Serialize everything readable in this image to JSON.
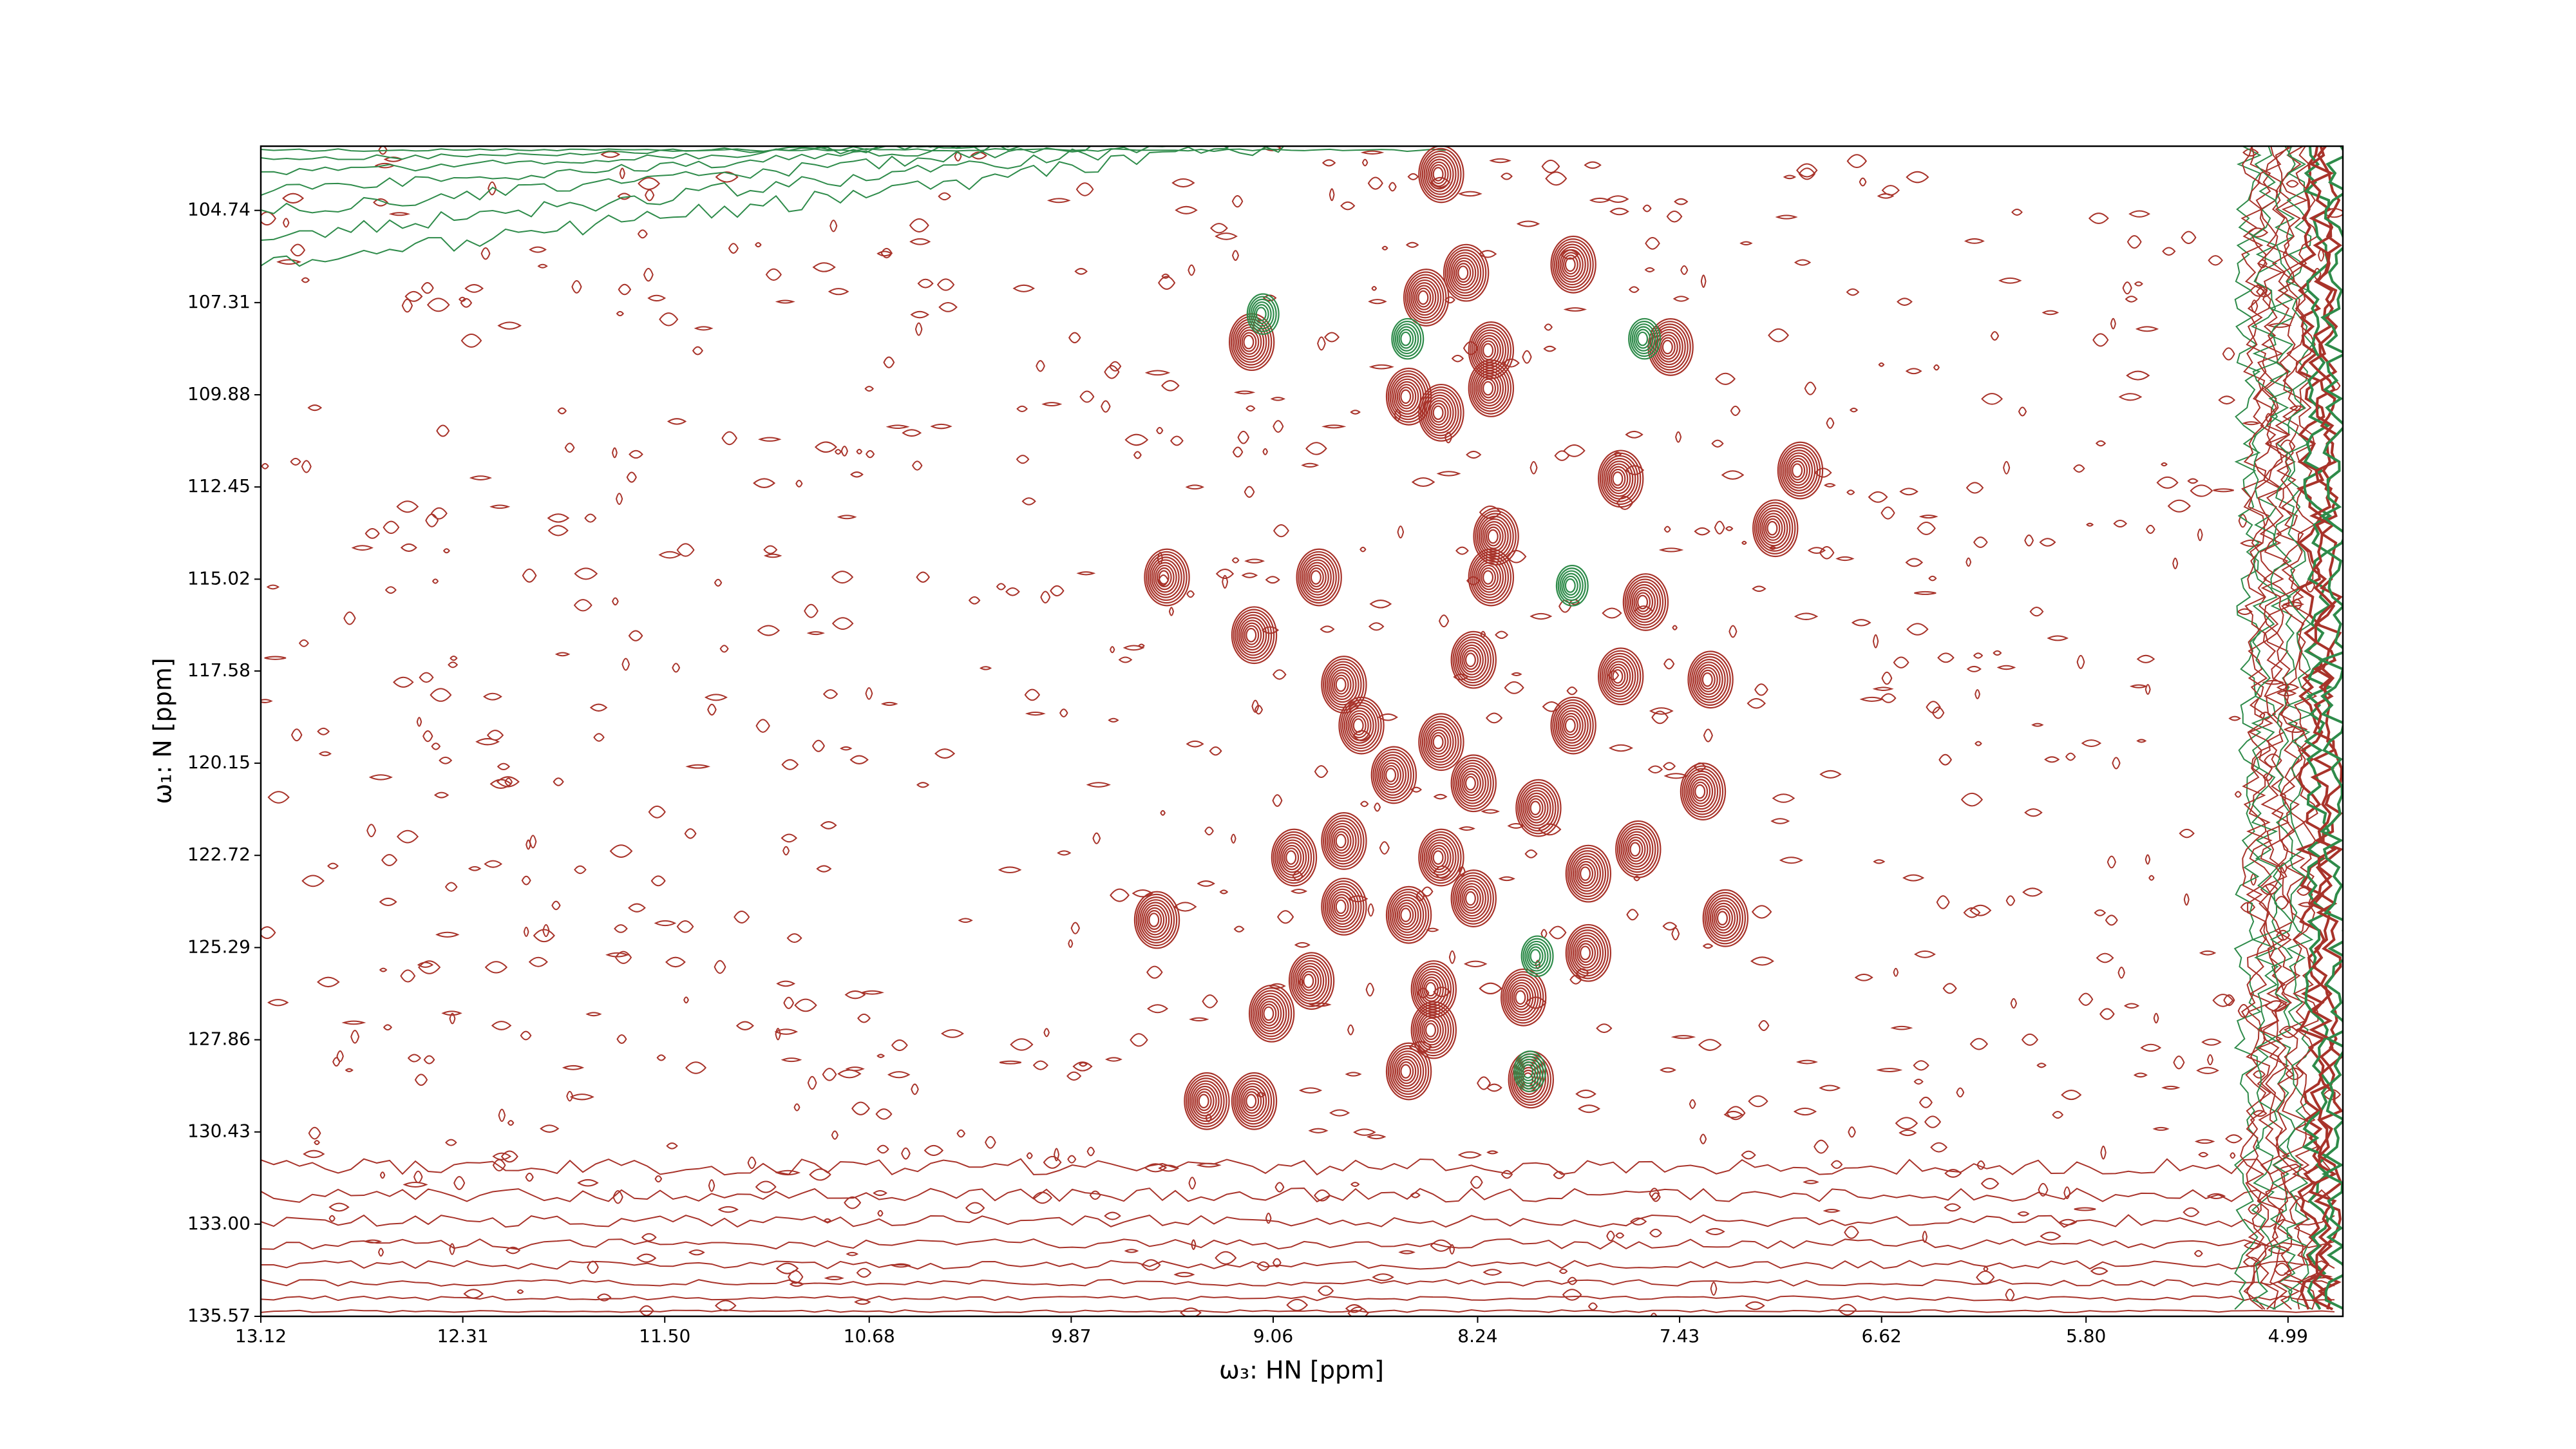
{
  "chart_data": {
    "type": "contour",
    "x_label": "ω₃: HN [ppm]",
    "y_label": "ω₁: N [ppm]",
    "xlim": [
      13.12,
      4.77
    ],
    "ylim": [
      135.57,
      102.95
    ],
    "xticks": [
      13.12,
      12.31,
      {
        "value": 11.5,
        "label": "11.50"
      },
      10.68,
      9.87,
      9.06,
      8.24,
      7.43,
      6.62,
      {
        "value": 5.8,
        "label": "5.80"
      },
      4.99
    ],
    "yticks": [
      104.74,
      107.31,
      109.88,
      112.45,
      115.02,
      117.58,
      120.15,
      122.72,
      125.29,
      127.86,
      130.43,
      {
        "value": 133,
        "label": "133.00"
      },
      135.57
    ],
    "series": [
      {
        "color": "#a8332a",
        "x": [
          9.16,
          8.2,
          7.48,
          8.53,
          8.4,
          8.2,
          7.68,
          6.96,
          7.06,
          8.18,
          9.5,
          8.89,
          9.15,
          8.2,
          7.58,
          7.32,
          8.79,
          8.72,
          7.35,
          7.68,
          7.87,
          8.4,
          8.27,
          8.59,
          8.79,
          8.99,
          7.61,
          7.81,
          7.26,
          9.54,
          8.79,
          8.53,
          7.81,
          8.92,
          9.08,
          8.43,
          8.07,
          8.43,
          8.53,
          8.04,
          9.15,
          9.34,
          8.27,
          8.4,
          8.27,
          8.01,
          8.46,
          8.3,
          7.87,
          8.4
        ],
        "y": [
          108.41,
          108.64,
          108.55,
          109.93,
          110.38,
          109.7,
          112.22,
          111.99,
          113.6,
          113.83,
          114.97,
          114.97,
          116.58,
          114.97,
          115.66,
          117.82,
          117.96,
          119.1,
          120.94,
          117.73,
          119.1,
          119.56,
          120.71,
          120.48,
          122.32,
          122.78,
          122.55,
          123.23,
          124.47,
          124.52,
          124.15,
          124.38,
          125.44,
          126.22,
          127.13,
          126.45,
          126.68,
          127.59,
          128.74,
          128.97,
          129.57,
          129.57,
          117.27,
          122.78,
          123.92,
          121.4,
          107.17,
          106.48,
          106.25,
          103.73
        ]
      },
      {
        "color": "#2e8b4a",
        "x": [
          9.11,
          8.53,
          7.58,
          8.01,
          8.04,
          7.87
        ],
        "y": [
          107.63,
          108.32,
          108.32,
          125.53,
          128.74,
          115.2
        ]
      }
    ]
  }
}
